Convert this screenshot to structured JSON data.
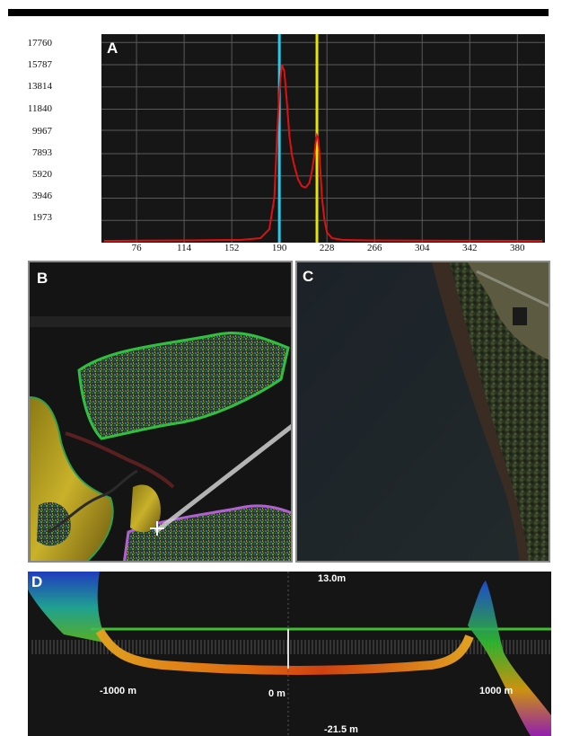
{
  "figure": {
    "panel_a_letter": "A",
    "panel_b_letter": "B",
    "panel_c_letter": "C",
    "panel_d_letter": "D"
  },
  "chart_data": {
    "type": "line",
    "xlabel": "",
    "ylabel": "",
    "x_ticks": [
      76,
      114,
      152,
      190,
      228,
      266,
      304,
      342,
      380
    ],
    "y_ticks": [
      1973,
      3946,
      5920,
      7893,
      9967,
      11840,
      13814,
      15787,
      17760
    ],
    "y_tick_labels": [
      "1973",
      "3946",
      "5920",
      "7893",
      "9967",
      "11840",
      "13814",
      "15787",
      "17760"
    ],
    "xlim": [
      48,
      402
    ],
    "ylim": [
      0,
      18500
    ],
    "grid": true,
    "series": [
      {
        "color": "#e01010",
        "x": [
          50,
          80,
          120,
          160,
          175,
          182,
          186,
          188,
          190,
          192,
          194,
          196,
          198,
          200,
          202,
          205,
          208,
          211,
          214,
          216,
          218,
          219,
          220,
          221,
          222,
          223,
          224,
          226,
          228,
          232,
          240,
          260,
          300,
          340,
          380,
          400
        ],
        "y": [
          150,
          180,
          200,
          250,
          400,
          1200,
          4000,
          9000,
          13500,
          15800,
          15200,
          12500,
          9500,
          7800,
          6800,
          5600,
          5000,
          4900,
          5300,
          6300,
          7800,
          8900,
          9500,
          9200,
          8000,
          6000,
          4000,
          2000,
          900,
          400,
          250,
          200,
          180,
          170,
          160,
          150
        ]
      }
    ],
    "markers": [
      {
        "color": "#2ec9e6",
        "x": 190
      },
      {
        "color": "#e6e600",
        "x": 220
      }
    ]
  },
  "panel_d": {
    "scale_top": "13.0m",
    "scale_bottom": "-21.5 m",
    "left_distance": "-1000 m",
    "center_distance": "0 m",
    "right_distance": "1000 m"
  },
  "colors": {
    "plot_background": "#161616",
    "grid": "#5a5a5a"
  }
}
